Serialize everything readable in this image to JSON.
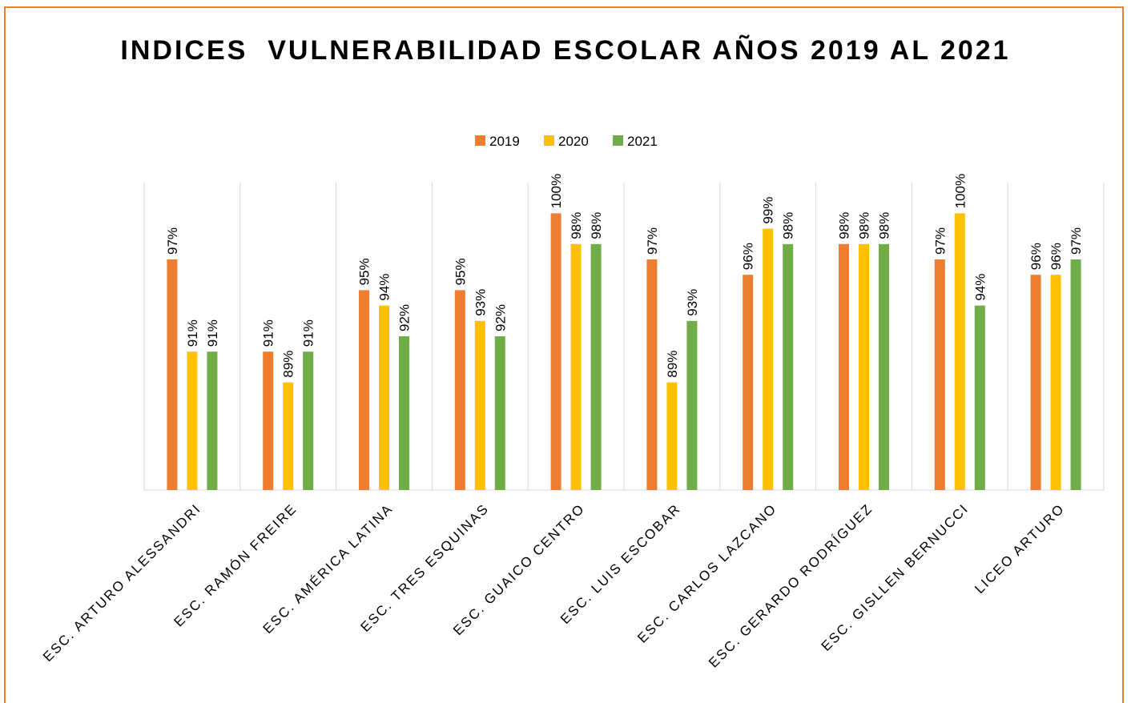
{
  "chart_data": {
    "type": "bar",
    "title": "INDICES  VULNERABILIDAD ESCOLAR AÑOS 2019 AL 2021",
    "categories": [
      "ESC. ARTURO ALESSANDRI",
      "ESC. RAMÓN FREIRE",
      "ESC. AMÉRICA LATINA",
      "ESC. TRES ESQUINAS",
      "ESC. GUAICO CENTRO",
      "ESC. LUIS ESCOBAR",
      "ESC. CARLOS LAZCANO",
      "ESC. GERARDO RODRÍGUEZ",
      "ESC. GISLLEN BERNUCCI",
      "LICEO ARTURO"
    ],
    "series": [
      {
        "name": "2019",
        "color": "#ED7D31",
        "values": [
          97,
          91,
          95,
          95,
          100,
          97,
          96,
          98,
          97,
          96
        ],
        "value_labels": [
          "97%",
          "91%",
          "95%",
          "95%",
          "100%",
          "97%",
          "96%",
          "98%",
          "97%",
          "96%"
        ]
      },
      {
        "name": "2020",
        "color": "#FFC000",
        "values": [
          91,
          89,
          94,
          93,
          98,
          89,
          99,
          98,
          100,
          96
        ],
        "value_labels": [
          "91%",
          "89%",
          "94%",
          "93%",
          "98%",
          "89%",
          "99%",
          "98%",
          "100%",
          "96%"
        ]
      },
      {
        "name": "2021",
        "color": "#70AD47",
        "values": [
          91,
          91,
          92,
          92,
          98,
          93,
          98,
          98,
          94,
          97
        ],
        "value_labels": [
          "91%",
          "91%",
          "92%",
          "92%",
          "98%",
          "93%",
          "98%",
          "98%",
          "94%",
          "97%"
        ]
      }
    ],
    "ylim": [
      82,
      102
    ],
    "legend": "top"
  }
}
